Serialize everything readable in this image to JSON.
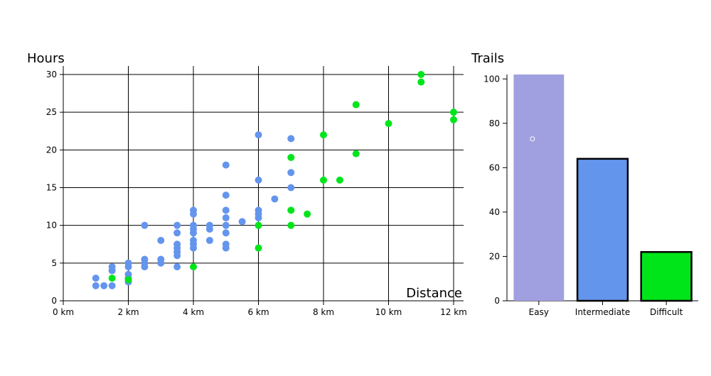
{
  "colors": {
    "easy": "#6495ed",
    "intermediate": "#6495ed",
    "difficult": "#00e51a",
    "bar_easy": "#a0a0e0",
    "bar_intermediate": "#6495ed",
    "bar_difficult": "#00e51a"
  },
  "chart_data": [
    {
      "type": "scatter",
      "title": "",
      "ylabel": "Hours",
      "xlabel": "Distance",
      "xlim": [
        0,
        12.3
      ],
      "ylim": [
        0,
        30
      ],
      "x_ticks": [
        0,
        2,
        4,
        6,
        8,
        10,
        12
      ],
      "x_tick_labels": [
        "0 km",
        "2 km",
        "4 km",
        "6 km",
        "8 km",
        "10 km",
        "12 km"
      ],
      "y_ticks": [
        0,
        5,
        10,
        15,
        20,
        25,
        30
      ],
      "grid": true,
      "series": [
        {
          "color": "#6495ed",
          "points": [
            [
              1,
              2
            ],
            [
              1,
              3
            ],
            [
              1.25,
              2
            ],
            [
              1.5,
              2
            ],
            [
              1.5,
              4
            ],
            [
              1.5,
              4.5
            ],
            [
              2,
              2.5
            ],
            [
              2,
              3
            ],
            [
              2,
              3.5
            ],
            [
              2,
              4.5
            ],
            [
              2,
              5
            ],
            [
              2.5,
              4.5
            ],
            [
              2.5,
              5
            ],
            [
              2.5,
              5.5
            ],
            [
              2.5,
              10
            ],
            [
              3,
              5
            ],
            [
              3,
              5.5
            ],
            [
              3,
              8
            ],
            [
              3.5,
              4.5
            ],
            [
              3.5,
              6
            ],
            [
              3.5,
              6.5
            ],
            [
              3.5,
              7
            ],
            [
              3.5,
              7.5
            ],
            [
              3.5,
              9
            ],
            [
              3.5,
              10
            ],
            [
              4,
              7
            ],
            [
              4,
              7.5
            ],
            [
              4,
              8
            ],
            [
              4,
              9
            ],
            [
              4,
              9.5
            ],
            [
              4,
              10
            ],
            [
              4,
              11.5
            ],
            [
              4,
              12
            ],
            [
              4.5,
              8
            ],
            [
              4.5,
              9.5
            ],
            [
              4.5,
              10
            ],
            [
              5,
              7
            ],
            [
              5,
              7.5
            ],
            [
              5,
              9
            ],
            [
              5,
              10
            ],
            [
              5,
              11
            ],
            [
              5,
              12
            ],
            [
              5,
              14
            ],
            [
              5,
              18
            ],
            [
              5.5,
              10.5
            ],
            [
              6,
              11
            ],
            [
              6,
              11.5
            ],
            [
              6,
              12
            ],
            [
              6,
              16
            ],
            [
              6,
              22
            ],
            [
              6.5,
              13.5
            ],
            [
              7,
              15
            ],
            [
              7,
              17
            ],
            [
              7,
              21.5
            ]
          ]
        },
        {
          "color": "#00e51a",
          "points": [
            [
              1.5,
              3
            ],
            [
              2,
              2.8
            ],
            [
              4,
              4.5
            ],
            [
              6,
              7
            ],
            [
              6,
              10
            ],
            [
              7,
              10
            ],
            [
              7,
              12
            ],
            [
              7,
              19
            ],
            [
              7.5,
              11.5
            ],
            [
              8,
              16
            ],
            [
              8,
              22
            ],
            [
              8.5,
              16
            ],
            [
              9,
              19.5
            ],
            [
              9,
              26
            ],
            [
              10,
              23.5
            ],
            [
              11,
              29
            ],
            [
              11,
              30
            ],
            [
              12,
              24
            ],
            [
              12,
              25
            ]
          ]
        }
      ]
    },
    {
      "type": "bar",
      "title": "",
      "ylabel": "Trails",
      "xlabel": "",
      "categories": [
        "Easy",
        "Intermediate",
        "Difficult"
      ],
      "values": [
        102,
        64,
        22
      ],
      "ylim": [
        0,
        102
      ],
      "y_ticks": [
        0,
        20,
        40,
        60,
        80,
        100
      ],
      "grid": false
    }
  ]
}
